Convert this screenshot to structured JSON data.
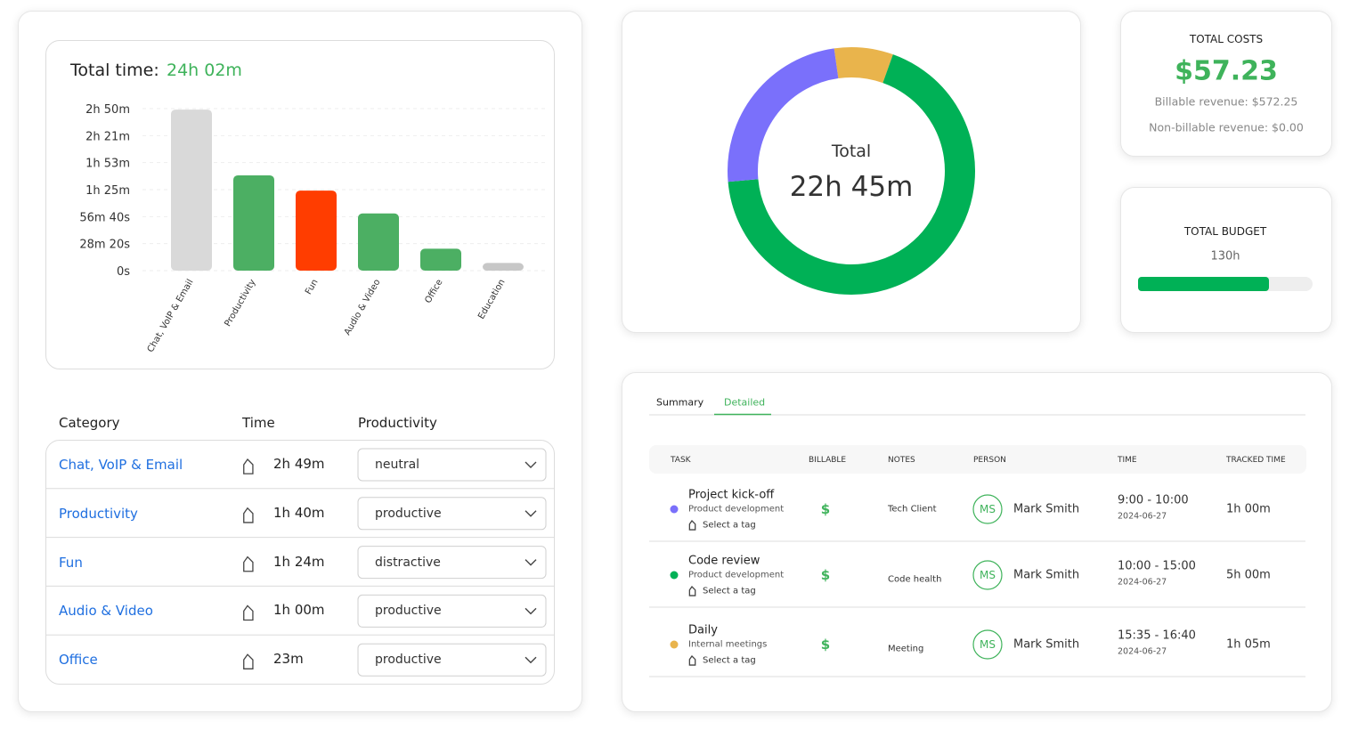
{
  "chart_data": [
    {
      "type": "bar",
      "title": "Total time:",
      "subtitle": "24h 02m",
      "categories": [
        "Chat, VoIP & Email",
        "Productivity",
        "Fun",
        "Audio & Video",
        "Office",
        "Education"
      ],
      "values": [
        169,
        100,
        84,
        60,
        23,
        8
      ],
      "colors": [
        "#d9d9d9",
        "#4caf63",
        "#ff3d00",
        "#4caf63",
        "#4caf63",
        "#c7c7c7"
      ],
      "ylim": [
        0,
        170
      ],
      "yticks": [
        {
          "value": 0,
          "label": "0s"
        },
        {
          "value": 28.333,
          "label": "28m 20s"
        },
        {
          "value": 56.667,
          "label": "56m 40s"
        },
        {
          "value": 85,
          "label": "1h 25m"
        },
        {
          "value": 113.333,
          "label": "1h 53m"
        },
        {
          "value": 141.667,
          "label": "2h 21m"
        },
        {
          "value": 170,
          "label": "2h 50m"
        }
      ],
      "grid": true
    },
    {
      "type": "donut",
      "title": "Total",
      "subtitle": "22h 45m",
      "values": [
        105,
        930,
        330
      ],
      "colors": [
        "#e9b44c",
        "#00b156",
        "#7a70fb"
      ]
    }
  ],
  "costs": {
    "title": "TOTAL COSTS",
    "amount": "$57.23",
    "billable": "Billable revenue: $572.25",
    "non_billable": "Non-billable revenue: $0.00"
  },
  "budget": {
    "title": "TOTAL BUDGET",
    "label": "130h",
    "progress": 75,
    "progress_lim": [
      0,
      100
    ],
    "color": "#00b156"
  },
  "category_table": {
    "headers": [
      "Category",
      "Time",
      "Productivity"
    ],
    "rows": [
      [
        "Chat, VoIP & Email",
        "2h 49m",
        "neutral"
      ],
      [
        "Productivity",
        "1h 40m",
        "productive"
      ],
      [
        "Fun",
        "1h 24m",
        "distractive"
      ],
      [
        "Audio & Video",
        "1h 00m",
        "productive"
      ],
      [
        "Office",
        "23m",
        "productive"
      ]
    ]
  },
  "tasks": {
    "tabs": [
      "Summary",
      "Detailed"
    ],
    "active_tab": 1,
    "headers": [
      "TASK",
      "BILLABLE",
      "NOTES",
      "PERSON",
      "TIME",
      "TRACKED TIME"
    ],
    "rows": [
      {
        "task": "Project kick-off",
        "project": "Product development",
        "dot": "#7a70fb",
        "tag": "Select a tag",
        "billable": "$",
        "notes": "Tech Client",
        "initials": "MS",
        "person": "Mark Smith",
        "time": "9:00 - 10:00",
        "date": "2024-06-27",
        "tracked": "1h 00m"
      },
      {
        "task": "Code review",
        "project": "Product development",
        "dot": "#00b156",
        "tag": "Select a tag",
        "billable": "$",
        "notes": "Code health",
        "initials": "MS",
        "person": "Mark Smith",
        "time": "10:00 - 15:00",
        "date": "2024-06-27",
        "tracked": "5h 00m"
      },
      {
        "task": "Daily",
        "project": "Internal meetings",
        "dot": "#e9b44c",
        "tag": "Select a tag",
        "billable": "$",
        "notes": "Meeting",
        "initials": "MS",
        "person": "Mark Smith",
        "time": "15:35 - 16:40",
        "date": "2024-06-27",
        "tracked": "1h 05m"
      }
    ]
  }
}
